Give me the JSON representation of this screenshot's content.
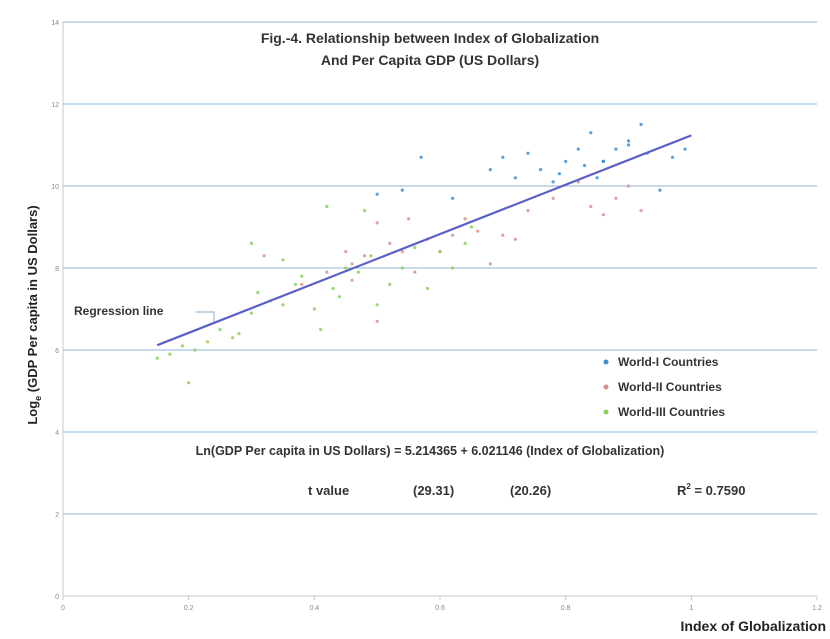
{
  "chart_data": {
    "type": "scatter",
    "title_lines": [
      "Fig.-4. Relationship between Index of Globalization",
      "And Per Capita GDP (US Dollars)"
    ],
    "xlabel": "Index of Globalization",
    "ylabel_parts": [
      "Log",
      "e",
      " (GDP Per capita in US Dollars)"
    ],
    "xlim": [
      0,
      1.2
    ],
    "ylim": [
      0,
      14
    ],
    "x_ticks": [
      0,
      0.2,
      0.4,
      0.6,
      0.8,
      1,
      1.2
    ],
    "x_tick_labels": [
      "0",
      "0.2",
      "0.4",
      "0.6",
      "0.8",
      "1",
      "1.2"
    ],
    "y_ticks": [
      0,
      2,
      4,
      6,
      8,
      10,
      12,
      14
    ],
    "y_tick_labels": [
      "0",
      "2",
      "4",
      "6",
      "8",
      "10",
      "12",
      "14"
    ],
    "grid": "horizontal",
    "legend_position": "right",
    "series": [
      {
        "name": "World-I Countries",
        "color": "#3a8fd6",
        "x": [
          0.5,
          0.54,
          0.57,
          0.62,
          0.68,
          0.7,
          0.72,
          0.74,
          0.76,
          0.78,
          0.8,
          0.82,
          0.84,
          0.85,
          0.86,
          0.88,
          0.9,
          0.92,
          0.93,
          0.95,
          0.97,
          0.99,
          0.86,
          0.9,
          0.83,
          0.79
        ],
        "y": [
          9.8,
          9.9,
          10.7,
          9.7,
          10.4,
          10.7,
          10.2,
          10.8,
          10.4,
          10.1,
          10.6,
          10.9,
          11.3,
          10.2,
          10.6,
          10.9,
          11.1,
          11.5,
          10.8,
          9.9,
          10.7,
          10.9,
          10.6,
          11.0,
          10.5,
          10.3
        ]
      },
      {
        "name": "World-II Countries",
        "color": "#d9908a",
        "x": [
          0.32,
          0.38,
          0.42,
          0.45,
          0.46,
          0.48,
          0.5,
          0.52,
          0.54,
          0.56,
          0.58,
          0.6,
          0.62,
          0.64,
          0.66,
          0.68,
          0.7,
          0.72,
          0.74,
          0.78,
          0.82,
          0.84,
          0.86,
          0.88,
          0.9,
          0.92,
          0.55,
          0.5,
          0.46
        ],
        "y": [
          8.3,
          7.6,
          7.9,
          8.4,
          8.1,
          8.3,
          9.1,
          8.6,
          8.4,
          7.9,
          8.7,
          8.4,
          8.8,
          9.2,
          8.9,
          8.1,
          8.8,
          8.7,
          9.4,
          9.7,
          10.1,
          9.5,
          9.3,
          9.7,
          10.0,
          9.4,
          9.2,
          6.7,
          7.7
        ]
      },
      {
        "name": "World-III Countries",
        "color": "#8ccf5a",
        "x": [
          0.15,
          0.17,
          0.19,
          0.21,
          0.23,
          0.25,
          0.27,
          0.28,
          0.3,
          0.31,
          0.33,
          0.35,
          0.37,
          0.38,
          0.4,
          0.41,
          0.43,
          0.44,
          0.45,
          0.47,
          0.49,
          0.5,
          0.52,
          0.54,
          0.56,
          0.58,
          0.6,
          0.62,
          0.64,
          0.65,
          0.3,
          0.35,
          0.42,
          0.48,
          0.2
        ],
        "y": [
          5.8,
          5.9,
          6.1,
          6.0,
          6.2,
          6.5,
          6.3,
          6.4,
          6.9,
          7.4,
          7.2,
          7.1,
          7.6,
          7.8,
          7.0,
          6.5,
          7.5,
          7.3,
          8.0,
          7.9,
          8.3,
          7.1,
          7.6,
          8.0,
          8.5,
          7.5,
          8.4,
          8.0,
          8.6,
          9.0,
          8.6,
          8.2,
          9.5,
          9.4,
          5.2
        ]
      }
    ],
    "regression": {
      "intercept": 5.214365,
      "slope": 6.021146,
      "x_range": [
        0.15,
        1.0
      ],
      "color": "#5a5fc8"
    },
    "annotations": {
      "regression_label": "Regression line",
      "equation": "Ln(GDP Per capita in US Dollars) = 5.214365 + 6.021146 (Index of Globalization)",
      "t_value_label": "t value",
      "t_value_1": "(29.31)",
      "t_value_2": "(20.26)",
      "r_squared_prefix": "R",
      "r_squared_sup": "2",
      "r_squared_value": " = 0.7590"
    }
  }
}
